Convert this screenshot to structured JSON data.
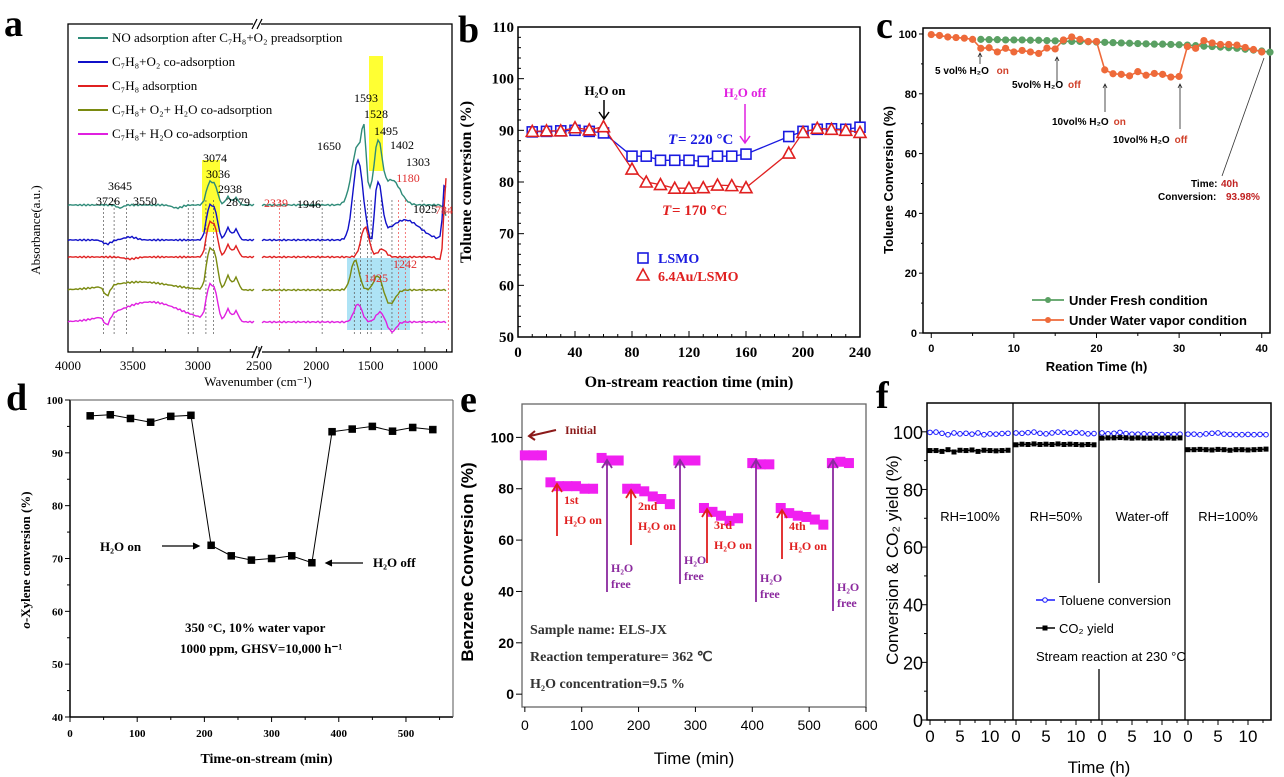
{
  "chart_data": [
    {
      "id": "a",
      "panel_label": "a",
      "type": "line",
      "title": "",
      "xlabel": "Wavenumber (cm⁻¹)",
      "ylabel": "Absorbance(a.u.)",
      "x_ticks": [
        "4000",
        "3500",
        "3000",
        "2500",
        "2000",
        "1500",
        "1000"
      ],
      "axis_break": "//",
      "legend": [
        {
          "label": "NO adsorption after C₇H₈+O₂ preadsorption",
          "color": "#2e8b78"
        },
        {
          "label": "C₇H₈+O₂ co-adsorption",
          "color": "#1010c8"
        },
        {
          "label": "C₇H₈ adsorption",
          "color": "#e02020"
        },
        {
          "label": "C₇H₈+ O₂+ H₂O co-adsorption",
          "color": "#7a8a10"
        },
        {
          "label": "C₇H₈+ H₂O co-adsorption",
          "color": "#e020e0"
        }
      ],
      "peak_labels_black": [
        "3726",
        "3645",
        "3550",
        "3074",
        "3036",
        "2938",
        "2879",
        "1946",
        "1650",
        "1593",
        "1528",
        "1495",
        "1402",
        "1303",
        "1025"
      ],
      "peak_labels_red": [
        "2339",
        "1180",
        "784",
        "1425",
        "1242"
      ],
      "highlights": [
        "yellow band ~3074-3036",
        "yellow band ~1402",
        "blue box ~1650-1100"
      ]
    },
    {
      "id": "b",
      "panel_label": "b",
      "type": "scatter",
      "xlabel": "On-stream reaction time (min)",
      "ylabel": "Toluene conversion (%)",
      "xlim": [
        0,
        240
      ],
      "ylim": [
        50,
        110
      ],
      "x_ticks": [
        "0",
        "40",
        "80",
        "120",
        "160",
        "200",
        "240"
      ],
      "y_ticks": [
        "50",
        "60",
        "70",
        "80",
        "90",
        "100",
        "110"
      ],
      "series": [
        {
          "name": "LSMO",
          "color": "#1a1ae0",
          "marker": "square",
          "x": [
            10,
            20,
            30,
            40,
            50,
            60,
            80,
            90,
            100,
            110,
            120,
            130,
            140,
            150,
            160,
            190,
            200,
            210,
            220,
            230,
            240
          ],
          "y": [
            89.7,
            89.8,
            89.9,
            90.0,
            89.8,
            89.5,
            85.0,
            85.0,
            84.2,
            84.2,
            84.2,
            84.0,
            85.0,
            85.0,
            85.4,
            88.8,
            89.8,
            90.2,
            90.3,
            90.2,
            90.6
          ]
        },
        {
          "name": "6.4Au/LSMO",
          "color": "#e02020",
          "marker": "triangle",
          "x": [
            10,
            20,
            30,
            40,
            50,
            60,
            80,
            90,
            100,
            110,
            120,
            130,
            140,
            150,
            160,
            190,
            200,
            210,
            220,
            230,
            240
          ],
          "y": [
            89.8,
            89.9,
            89.9,
            90.5,
            90.1,
            90.7,
            82.5,
            80.0,
            79.5,
            78.8,
            78.8,
            78.9,
            79.4,
            79.3,
            78.9,
            85.6,
            89.6,
            90.4,
            90.2,
            90.0,
            89.6
          ]
        }
      ],
      "annotations": [
        {
          "text": "H₂O on",
          "color": "#000000"
        },
        {
          "text": "H₂O off",
          "color": "#e020e0"
        },
        {
          "text_prefix": "T",
          "text": " = 220 °C",
          "color": "#1a1ae0"
        },
        {
          "text_prefix": "T",
          "text": " = 170 °C",
          "color": "#e02020"
        }
      ]
    },
    {
      "id": "c",
      "panel_label": "c",
      "type": "line",
      "xlabel": "Reation Time (h)",
      "ylabel": "Toluene Conversion (%)",
      "xlim": [
        -1,
        41
      ],
      "ylim": [
        0,
        102
      ],
      "x_ticks": [
        "0",
        "10",
        "20",
        "30",
        "40"
      ],
      "y_ticks": [
        "0",
        "20",
        "40",
        "60",
        "80",
        "100"
      ],
      "series": [
        {
          "name": "Under Fresh condition",
          "color": "#5aa063",
          "x": [
            6,
            7,
            8,
            9,
            10,
            11,
            12,
            13,
            14,
            15,
            16,
            17,
            18,
            19,
            20,
            21,
            22,
            23,
            24,
            25,
            26,
            27,
            28,
            29,
            30,
            31,
            32,
            33,
            34,
            35,
            36,
            37,
            38,
            39,
            40,
            41
          ],
          "y": [
            98.2,
            98.1,
            98.1,
            98.0,
            98.0,
            98.0,
            97.9,
            97.9,
            97.8,
            97.7,
            97.6,
            97.5,
            97.5,
            97.4,
            97.3,
            97.2,
            97.1,
            97.0,
            96.9,
            96.8,
            96.7,
            96.6,
            96.6,
            96.5,
            96.4,
            96.3,
            96.1,
            95.9,
            95.8,
            95.6,
            95.4,
            95.2,
            94.9,
            94.6,
            94.3,
            93.9
          ]
        },
        {
          "name": "Under Water vapor condition",
          "color": "#ee6a3a",
          "x": [
            0,
            1,
            2,
            3,
            4,
            5,
            6,
            7,
            8,
            9,
            10,
            11,
            12,
            13,
            14,
            15,
            16,
            17,
            18,
            19,
            20,
            21,
            22,
            23,
            24,
            25,
            26,
            27,
            28,
            29,
            30,
            31,
            32,
            33,
            34,
            35,
            36,
            37,
            38,
            39,
            40
          ],
          "y": [
            99.8,
            99.5,
            99.0,
            98.8,
            98.6,
            98.2,
            95.2,
            95.4,
            94.0,
            95.2,
            94.0,
            94.5,
            94.0,
            93.5,
            95.3,
            95.0,
            98.0,
            99.0,
            98.2,
            97.5,
            97.5,
            88.0,
            86.7,
            86.5,
            86.0,
            87.4,
            86.2,
            86.8,
            86.5,
            85.6,
            85.8,
            95.8,
            95.2,
            97.8,
            97.0,
            96.5,
            96.5,
            96.3,
            95.5,
            94.8,
            93.98
          ]
        }
      ],
      "annotations": [
        {
          "text": "5 vol% H₂O ",
          "suffix": "on"
        },
        {
          "text": "5vol% H₂O ",
          "suffix": "off"
        },
        {
          "text": "10vol% H₂O ",
          "suffix": "on"
        },
        {
          "text": "10vol% H₂O ",
          "suffix": "off"
        },
        {
          "text": "Time:",
          "suffix": "40h"
        },
        {
          "text": "Conversion: ",
          "suffix": "93.98%"
        }
      ],
      "legend_position": "bottom-right"
    },
    {
      "id": "d",
      "panel_label": "d",
      "type": "line",
      "xlabel": "Time-on-stream (min)",
      "ylabel": "o-Xylene conversion (%)",
      "ylabel_italic_prefix": "o",
      "ylabel_rest": "-Xylene conversion (%)",
      "xlim": [
        0,
        570
      ],
      "ylim": [
        40,
        100
      ],
      "x_ticks": [
        "0",
        "100",
        "200",
        "300",
        "400",
        "500"
      ],
      "y_ticks": [
        "40",
        "50",
        "60",
        "70",
        "80",
        "90",
        "100"
      ],
      "series": [
        {
          "name": "o-Xylene",
          "color": "#000000",
          "marker": "square",
          "x": [
            30,
            60,
            90,
            120,
            150,
            180,
            210,
            240,
            270,
            300,
            330,
            360,
            390,
            420,
            450,
            480,
            510,
            540
          ],
          "y": [
            97.0,
            97.2,
            96.5,
            95.8,
            96.9,
            97.1,
            72.5,
            70.5,
            69.7,
            70.0,
            70.5,
            69.2,
            94.0,
            94.5,
            95.0,
            94.1,
            94.8,
            94.4
          ]
        }
      ],
      "annotations": [
        {
          "text": "H₂O on"
        },
        {
          "text": "H₂O off"
        },
        {
          "text": "350 °C, 10% water vapor"
        },
        {
          "text": "1000 ppm, GHSV=10,000 h⁻¹"
        }
      ]
    },
    {
      "id": "e",
      "panel_label": "e",
      "type": "scatter",
      "xlabel": "Time (min)",
      "ylabel": "Benzene Conversion (%)",
      "xlim": [
        -5,
        600
      ],
      "ylim": [
        -5,
        113
      ],
      "x_ticks": [
        "0",
        "100",
        "200",
        "300",
        "400",
        "500",
        "600"
      ],
      "y_ticks": [
        "0",
        "20",
        "40",
        "60",
        "80",
        "100"
      ],
      "series": [
        {
          "name": "Benzene conversion",
          "color": "#f020f0",
          "marker": "square",
          "x": [
            0,
            15,
            30,
            45,
            60,
            75,
            90,
            105,
            120,
            135,
            150,
            165,
            180,
            195,
            210,
            225,
            240,
            255,
            270,
            285,
            300,
            315,
            330,
            345,
            360,
            375,
            400,
            415,
            430,
            450,
            465,
            480,
            495,
            510,
            525,
            540,
            555,
            570
          ],
          "y": [
            93,
            93,
            93,
            82.5,
            81,
            81,
            81,
            80,
            80,
            92,
            91,
            91,
            80,
            80,
            79,
            77,
            76,
            74,
            91,
            91,
            91,
            72.5,
            71,
            69.5,
            67.5,
            68.5,
            90,
            89.5,
            89.5,
            72.5,
            70.5,
            69.5,
            69,
            68,
            66,
            90,
            90.5,
            90
          ]
        }
      ],
      "annotations": [
        {
          "text": "Initial",
          "color": "#8b1a1a"
        },
        {
          "text": "1st",
          "color": "#e02020"
        },
        {
          "text": "2nd",
          "color": "#e02020"
        },
        {
          "text": "3rd",
          "color": "#e02020"
        },
        {
          "text": "4th",
          "color": "#e02020"
        },
        {
          "text": "H₂O on",
          "color": "#e02020"
        },
        {
          "text": "H₂O",
          "color": "#8b2a9e"
        },
        {
          "text": "free",
          "color": "#8b2a9e"
        },
        {
          "text": "Sample name: ELS-JX"
        },
        {
          "text": "Reaction  temperature= 362 ℃"
        },
        {
          "text": "H₂O concentration=9.5 %"
        }
      ]
    },
    {
      "id": "f",
      "panel_label": "f",
      "type": "line",
      "xlabel": "Time (h)",
      "ylabel": "Conversion & CO₂ yield (%)",
      "ylim": [
        0,
        110
      ],
      "x_ticks_per_segment": [
        "0",
        "5",
        "10"
      ],
      "y_ticks": [
        "0",
        "20",
        "40",
        "60",
        "80",
        "100"
      ],
      "segments": [
        "RH=100%",
        "RH=50%",
        "Water-off",
        "RH=100%"
      ],
      "series": [
        {
          "name": "Toluene conversion",
          "color": "#1a1aff",
          "marker": "circle-open",
          "segment_values": [
            [
              99.8,
              99.9,
              99.5,
              99.0,
              99.6,
              99.3,
              99.5,
              99.2,
              99.6,
              99.0,
              99.3,
              99.2,
              99.4,
              99.5
            ],
            [
              99.6,
              99.5,
              99.7,
              99.9,
              99.5,
              99.3,
              99.6,
              99.9,
              99.8,
              99.5,
              99.8,
              99.6,
              99.3,
              99.4
            ],
            [
              99.6,
              99.3,
              99.5,
              99.8,
              99.4,
              99.2,
              99.2,
              99.3,
              99.1,
              99.0,
              99.1,
              99.0,
              99.1,
              99.2
            ],
            [
              99.2,
              99.2,
              99.0,
              99.3,
              99.5,
              99.6,
              99.2,
              99.1,
              99.0,
              99.0,
              99.1,
              99.0,
              99.1,
              99.0
            ]
          ]
        },
        {
          "name": "CO₂ yield",
          "color": "#000000",
          "marker": "square",
          "segment_values": [
            [
              93.5,
              93.5,
              93.2,
              93.8,
              93.0,
              93.6,
              93.5,
              93.7,
              93.2,
              93.6,
              93.5,
              93.4,
              93.5,
              93.6
            ],
            [
              95.5,
              95.7,
              95.6,
              95.8,
              95.6,
              95.7,
              95.6,
              95.8,
              95.6,
              95.7,
              95.6,
              95.5,
              95.6,
              95.5
            ],
            [
              97.8,
              97.9,
              97.9,
              98.0,
              97.9,
              97.8,
              97.9,
              97.8,
              97.8,
              97.9,
              97.8,
              97.9,
              97.8,
              97.9
            ],
            [
              93.8,
              93.8,
              93.9,
              93.8,
              93.7,
              93.9,
              93.8,
              93.6,
              93.8,
              93.8,
              93.7,
              93.8,
              93.9,
              94.0
            ]
          ]
        }
      ],
      "annotations": [
        {
          "text": "Stream reaction at 230 °C"
        }
      ],
      "legend_position": "center"
    }
  ]
}
